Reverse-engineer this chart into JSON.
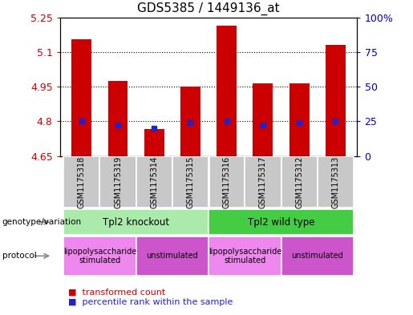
{
  "title": "GDS5385 / 1449136_at",
  "samples": [
    "GSM1175318",
    "GSM1175319",
    "GSM1175314",
    "GSM1175315",
    "GSM1175316",
    "GSM1175317",
    "GSM1175312",
    "GSM1175313"
  ],
  "red_values": [
    5.155,
    4.975,
    4.765,
    4.95,
    5.215,
    4.965,
    4.965,
    5.13
  ],
  "blue_values": [
    4.8,
    4.785,
    4.77,
    4.795,
    4.8,
    4.785,
    4.795,
    4.8
  ],
  "ylim_left": [
    4.65,
    5.25
  ],
  "yticks_left": [
    4.65,
    4.8,
    4.95,
    5.1,
    5.25
  ],
  "yticks_right": [
    0,
    25,
    50,
    75,
    100
  ],
  "ytick_labels_right": [
    "0",
    "25",
    "50",
    "75",
    "100%"
  ],
  "bar_color": "#cc0000",
  "blue_color": "#2222cc",
  "sample_bg": "#c8c8c8",
  "plot_bg": "#ffffff",
  "genotype_groups": [
    {
      "label": "Tpl2 knockout",
      "start": 0,
      "end": 4,
      "color": "#aaeaaa"
    },
    {
      "label": "Tpl2 wild type",
      "start": 4,
      "end": 8,
      "color": "#44cc44"
    }
  ],
  "protocol_groups": [
    {
      "label": "lipopolysaccharide\nstimulated",
      "start": 0,
      "end": 2,
      "color": "#ee88ee"
    },
    {
      "label": "unstimulated",
      "start": 2,
      "end": 4,
      "color": "#cc55cc"
    },
    {
      "label": "lipopolysaccharide\nstimulated",
      "start": 4,
      "end": 6,
      "color": "#ee88ee"
    },
    {
      "label": "unstimulated",
      "start": 6,
      "end": 8,
      "color": "#cc55cc"
    }
  ],
  "legend_items": [
    {
      "color": "#cc0000",
      "label": "transformed count"
    },
    {
      "color": "#2222cc",
      "label": "percentile rank within the sample"
    }
  ],
  "left_label_color": "#cc0000",
  "right_label_color": "#0000bb",
  "bar_width": 0.55
}
